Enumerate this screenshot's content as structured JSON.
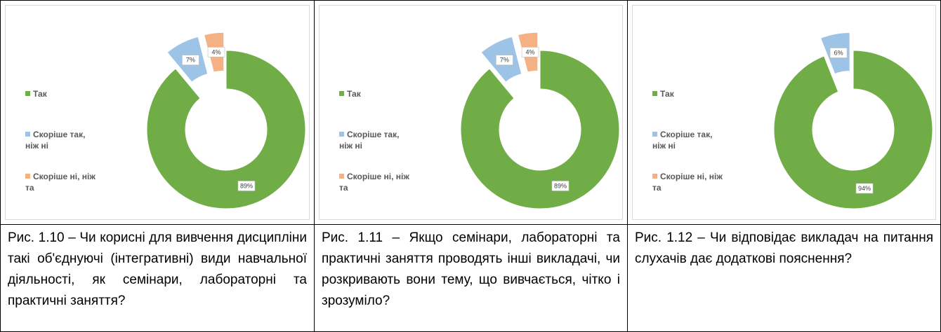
{
  "chart_data": [
    {
      "type": "pie",
      "donut": true,
      "categories": [
        "Так",
        "Скоріше так, ніж ні",
        "Скоріше ні, ніж та"
      ],
      "values": [
        89,
        7,
        4
      ],
      "value_labels": [
        "89%",
        "7%",
        "4%"
      ],
      "colors": [
        "#70ad47",
        "#9dc3e6",
        "#f4b183"
      ],
      "exploded": [
        false,
        true,
        true
      ],
      "caption": "Рис. 1.10 – Чи корисні для вивчення дисципліни такі об'єднуючі (інтегративні) види навчальної діяльності, як семінари, лабораторні та практичні заняття?"
    },
    {
      "type": "pie",
      "donut": true,
      "categories": [
        "Так",
        "Скоріше так, ніж ні",
        "Скоріше ні, ніж та"
      ],
      "values": [
        89,
        7,
        4
      ],
      "value_labels": [
        "89%",
        "7%",
        "4%"
      ],
      "colors": [
        "#70ad47",
        "#9dc3e6",
        "#f4b183"
      ],
      "exploded": [
        false,
        true,
        true
      ],
      "caption": "Рис. 1.11 – Якщо семінари, лабораторні та практичні заняття проводять інші викладачі, чи розкривають вони тему, що вивчається, чітко і зрозуміло?"
    },
    {
      "type": "pie",
      "donut": true,
      "categories": [
        "Так",
        "Скоріше так, ніж ні",
        "Скоріше ні, ніж та"
      ],
      "values": [
        94,
        6,
        0
      ],
      "value_labels": [
        "94%",
        "6%",
        null
      ],
      "colors": [
        "#70ad47",
        "#9dc3e6",
        "#f4b183"
      ],
      "exploded": [
        false,
        true,
        true
      ],
      "caption": "Рис. 1.12 – Чи відповідає викладач на питання слухачів дає додаткові пояснення?"
    }
  ]
}
